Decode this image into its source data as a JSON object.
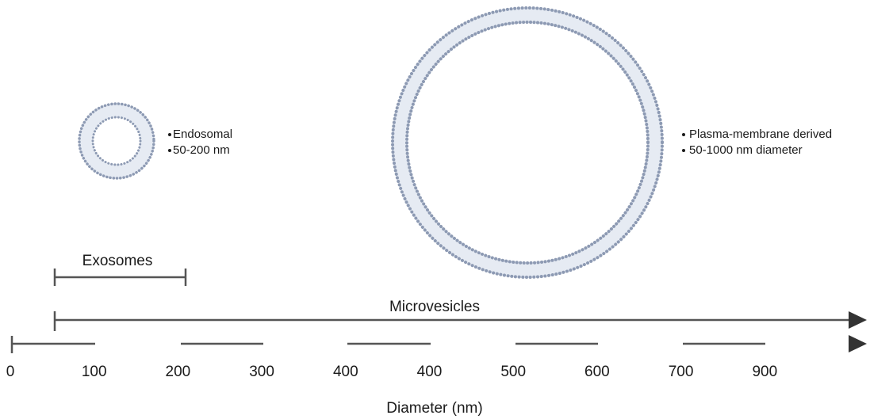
{
  "exosome_note": {
    "lines": [
      "Endosomal",
      "50-200 nm"
    ]
  },
  "microvesicle_note": {
    "lines": [
      "Plasma-membrane derived",
      "50-1000 nm diameter"
    ]
  },
  "ranges": {
    "exosomes": "Exosomes",
    "microvesicles": "Microvesicles"
  },
  "axis": {
    "labels": [
      "0",
      "100",
      "200",
      "300",
      "400",
      "400",
      "500",
      "600",
      "700",
      "900"
    ],
    "title": "Diameter (nm)"
  }
}
